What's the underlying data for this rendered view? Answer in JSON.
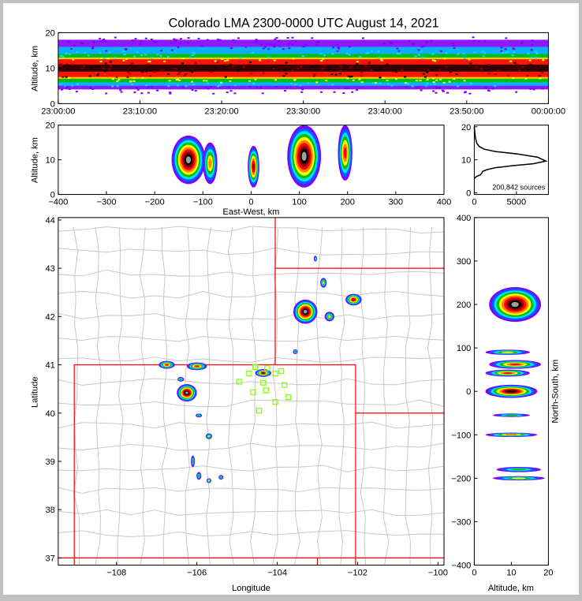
{
  "chart_data": [
    {
      "type": "heatmap",
      "title": "Colorado LMA 2300-0000 UTC August 14, 2021",
      "panel": "time-height",
      "xlabel": "",
      "ylabel": "Altitude, km",
      "xticks": [
        "23:00:00",
        "23:10:00",
        "23:20:00",
        "23:30:00",
        "23:40:00",
        "23:50:00",
        "00:00:00"
      ],
      "yticks": [
        "0",
        "10",
        "20"
      ],
      "ylim": [
        0,
        20
      ],
      "density_bands_km": [
        {
          "level": "low",
          "color": "#8000ff",
          "range": [
            4,
            18
          ]
        },
        {
          "level": "low-mid",
          "color": "#00bfff",
          "range": [
            5,
            16
          ]
        },
        {
          "level": "mid",
          "color": "#00c000",
          "range": [
            6,
            14
          ]
        },
        {
          "level": "mid-high",
          "color": "#ffd000",
          "range": [
            7,
            13
          ]
        },
        {
          "level": "high",
          "color": "#ff0000",
          "range": [
            7.5,
            12.5
          ]
        },
        {
          "level": "peak",
          "color": "#200000",
          "range": [
            9,
            11
          ]
        }
      ]
    },
    {
      "type": "heatmap",
      "panel": "east-west vs altitude",
      "xlabel": "East-West, km",
      "ylabel": "Altitude, km",
      "xlim": [
        -400,
        400
      ],
      "ylim": [
        0,
        20
      ],
      "xticks": [
        "−400",
        "−300",
        "−200",
        "−100",
        "0",
        "100",
        "200",
        "300",
        "400"
      ],
      "yticks": [
        "0",
        "10",
        "20"
      ],
      "clusters": [
        {
          "x": -130,
          "y": 10,
          "sx": 35,
          "sy": 7,
          "intensity": 1.0
        },
        {
          "x": -85,
          "y": 9,
          "sx": 15,
          "sy": 6,
          "intensity": 0.6
        },
        {
          "x": 5,
          "y": 8,
          "sx": 12,
          "sy": 6,
          "intensity": 0.75
        },
        {
          "x": 110,
          "y": 11,
          "sx": 35,
          "sy": 9,
          "intensity": 1.0
        },
        {
          "x": 195,
          "y": 12,
          "sx": 15,
          "sy": 8,
          "intensity": 0.7
        }
      ]
    },
    {
      "type": "line",
      "panel": "altitude histogram",
      "annotation": "200,842 sources",
      "xticks": [
        "0",
        "5000"
      ],
      "yticks": [
        "0",
        "10",
        "20"
      ],
      "xlim": [
        0,
        8800
      ],
      "ylim": [
        -0.5,
        20.5
      ],
      "x": [
        0,
        50,
        300,
        700,
        900,
        1000,
        1500,
        2500,
        4500,
        7000,
        8500,
        7500,
        5000,
        2500,
        1200,
        600,
        300,
        150,
        50,
        0
      ],
      "y": [
        4.3,
        4.5,
        5.0,
        5.4,
        6.0,
        6.5,
        7.0,
        7.6,
        8.2,
        8.8,
        9.6,
        10.8,
        11.8,
        12.5,
        13.2,
        14.0,
        15.0,
        16.5,
        18.5,
        20
      ]
    },
    {
      "type": "scatter",
      "panel": "plan view",
      "xlabel": "Longitude",
      "ylabel": "Latitude",
      "xlim": [
        -109.45,
        -99.85
      ],
      "ylim": [
        36.85,
        44.05
      ],
      "xticks": [
        {
          "v": -108,
          "t": "−108"
        },
        {
          "v": -106,
          "t": "−106"
        },
        {
          "v": -104,
          "t": "−104"
        },
        {
          "v": -102,
          "t": "−102"
        },
        {
          "v": -100,
          "t": "−100"
        }
      ],
      "yticks": [
        {
          "v": 37,
          "t": "37"
        },
        {
          "v": 38,
          "t": "38"
        },
        {
          "v": 39,
          "t": "39"
        },
        {
          "v": 40,
          "t": "40"
        },
        {
          "v": 41,
          "t": "41"
        },
        {
          "v": 42,
          "t": "42"
        },
        {
          "v": 43,
          "t": "43"
        },
        {
          "v": 44,
          "t": "44"
        }
      ],
      "clusters": [
        {
          "x": -103.3,
          "y": 42.1,
          "sx": 0.3,
          "sy": 0.25,
          "intensity": 1.0
        },
        {
          "x": -102.1,
          "y": 42.35,
          "sx": 0.2,
          "sy": 0.12,
          "intensity": 0.8
        },
        {
          "x": -102.85,
          "y": 42.7,
          "sx": 0.08,
          "sy": 0.1,
          "intensity": 0.5
        },
        {
          "x": -102.7,
          "y": 42.0,
          "sx": 0.12,
          "sy": 0.1,
          "intensity": 0.5
        },
        {
          "x": -103.05,
          "y": 43.2,
          "sx": 0.04,
          "sy": 0.06,
          "intensity": 0.3
        },
        {
          "x": -103.55,
          "y": 41.27,
          "sx": 0.06,
          "sy": 0.05,
          "intensity": 0.4
        },
        {
          "x": -106.75,
          "y": 41.0,
          "sx": 0.2,
          "sy": 0.08,
          "intensity": 0.7
        },
        {
          "x": -106.0,
          "y": 40.97,
          "sx": 0.25,
          "sy": 0.08,
          "intensity": 0.7
        },
        {
          "x": -104.35,
          "y": 40.83,
          "sx": 0.2,
          "sy": 0.08,
          "intensity": 0.8
        },
        {
          "x": -106.25,
          "y": 40.42,
          "sx": 0.25,
          "sy": 0.18,
          "intensity": 1.0
        },
        {
          "x": -106.4,
          "y": 40.7,
          "sx": 0.08,
          "sy": 0.05,
          "intensity": 0.4
        },
        {
          "x": -105.95,
          "y": 39.95,
          "sx": 0.08,
          "sy": 0.04,
          "intensity": 0.4
        },
        {
          "x": -105.7,
          "y": 39.52,
          "sx": 0.08,
          "sy": 0.06,
          "intensity": 0.5
        },
        {
          "x": -106.1,
          "y": 39.0,
          "sx": 0.05,
          "sy": 0.12,
          "intensity": 0.4
        },
        {
          "x": -105.95,
          "y": 38.7,
          "sx": 0.06,
          "sy": 0.08,
          "intensity": 0.4
        },
        {
          "x": -105.7,
          "y": 38.6,
          "sx": 0.06,
          "sy": 0.05,
          "intensity": 0.5
        },
        {
          "x": -105.4,
          "y": 38.67,
          "sx": 0.06,
          "sy": 0.05,
          "intensity": 0.4
        }
      ],
      "stations": [
        [
          -104.95,
          40.65
        ],
        [
          -104.7,
          40.82
        ],
        [
          -104.55,
          40.95
        ],
        [
          -104.25,
          40.93
        ],
        [
          -104.05,
          40.82
        ],
        [
          -103.9,
          40.87
        ],
        [
          -104.35,
          40.63
        ],
        [
          -104.6,
          40.43
        ],
        [
          -104.28,
          40.47
        ],
        [
          -103.82,
          40.58
        ],
        [
          -103.72,
          40.33
        ],
        [
          -104.05,
          40.23
        ],
        [
          -104.45,
          40.05
        ]
      ],
      "state_borders": [
        [
          [
            -109.05,
            36.85
          ],
          [
            -109.05,
            41
          ],
          [
            -102.05,
            41
          ],
          [
            -102.05,
            36.85
          ]
        ],
        [
          [
            -109.45,
            37
          ],
          [
            -99.85,
            37
          ]
        ],
        [
          [
            -103,
            36.85
          ],
          [
            -103,
            37
          ]
        ],
        [
          [
            -104.05,
            44.05
          ],
          [
            -104.05,
            41
          ]
        ],
        [
          [
            -104.05,
            43
          ],
          [
            -99.85,
            43
          ]
        ],
        [
          [
            -102.05,
            40
          ],
          [
            -99.85,
            40
          ]
        ]
      ]
    },
    {
      "type": "heatmap",
      "panel": "altitude vs north-south",
      "xlabel": "Altitude, km",
      "ylabel": "North-South, km",
      "xlim": [
        0,
        20
      ],
      "ylim": [
        -400,
        400
      ],
      "xticks": [
        "0",
        "10",
        "20"
      ],
      "yticks": [
        {
          "v": 400,
          "t": "400"
        },
        {
          "v": 300,
          "t": "300"
        },
        {
          "v": 200,
          "t": "200"
        },
        {
          "v": 100,
          "t": "100"
        },
        {
          "v": 0,
          "t": "0"
        },
        {
          "v": -100,
          "t": "−100"
        },
        {
          "v": -200,
          "t": "−200"
        },
        {
          "v": -300,
          "t": "−300"
        },
        {
          "v": -400,
          "t": "−400"
        }
      ],
      "clusters": [
        {
          "x": 11,
          "y": 200,
          "sx": 7,
          "sy": 40,
          "intensity": 1.0
        },
        {
          "x": 9,
          "y": 90,
          "sx": 6,
          "sy": 6,
          "intensity": 0.5
        },
        {
          "x": 11,
          "y": 62,
          "sx": 7,
          "sy": 10,
          "intensity": 0.7
        },
        {
          "x": 9,
          "y": 42,
          "sx": 6,
          "sy": 8,
          "intensity": 0.7
        },
        {
          "x": 10,
          "y": 0,
          "sx": 7,
          "sy": 15,
          "intensity": 0.9
        },
        {
          "x": 10,
          "y": -55,
          "sx": 5,
          "sy": 4,
          "intensity": 0.4
        },
        {
          "x": 10,
          "y": -100,
          "sx": 7,
          "sy": 5,
          "intensity": 0.6
        },
        {
          "x": 12,
          "y": -180,
          "sx": 6,
          "sy": 6,
          "intensity": 0.4
        },
        {
          "x": 12,
          "y": -200,
          "sx": 7,
          "sy": 5,
          "intensity": 0.5
        }
      ]
    }
  ],
  "colors": {
    "scale": [
      "#8000ff",
      "#0060ff",
      "#00e0ff",
      "#00c000",
      "#ffff00",
      "#ff8000",
      "#ff0000",
      "#900000",
      "#000000",
      "#a0a0a0"
    ],
    "border": "#ff0000",
    "county": "#c8c8c8",
    "station": "#80ff00"
  }
}
